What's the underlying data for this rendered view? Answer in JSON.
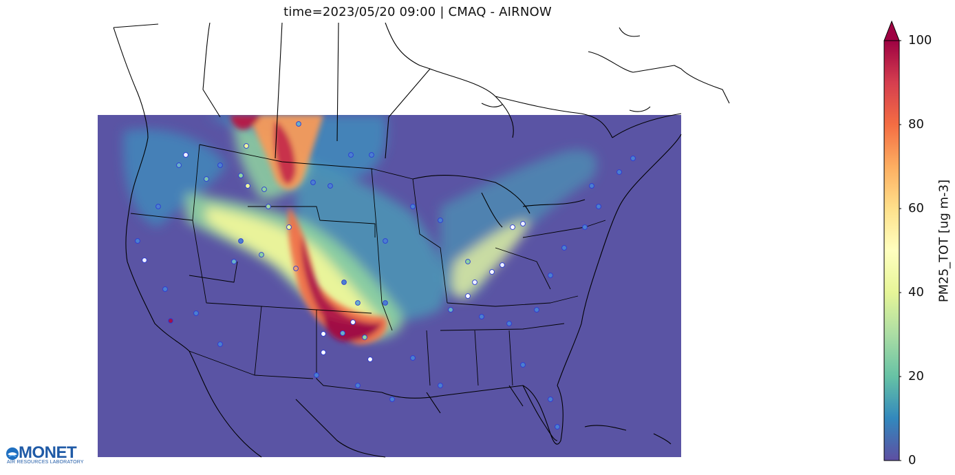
{
  "title": "time=2023/05/20 09:00 | CMAQ - AIRNOW",
  "colorbar": {
    "label": "PM25_TOT [ug m-3]",
    "ticks": [
      "0",
      "20",
      "40",
      "60",
      "80",
      "100"
    ],
    "min": 0,
    "max": 100,
    "extend": "max",
    "colormap": "Spectral_r",
    "colors": [
      "#5e4fa2",
      "#3288bd",
      "#66c2a5",
      "#abdda4",
      "#e6f598",
      "#ffffbf",
      "#fee08b",
      "#fdae61",
      "#f46d43",
      "#d53e4f",
      "#9e0142"
    ]
  },
  "logo": {
    "name": "MONET",
    "subtitle": "AIR RESOURCES LABORATORY"
  },
  "map": {
    "region": "Contiguous United States",
    "model_field": "CMAQ PM25_TOT",
    "observations": "AIRNOW monitor sites"
  }
}
